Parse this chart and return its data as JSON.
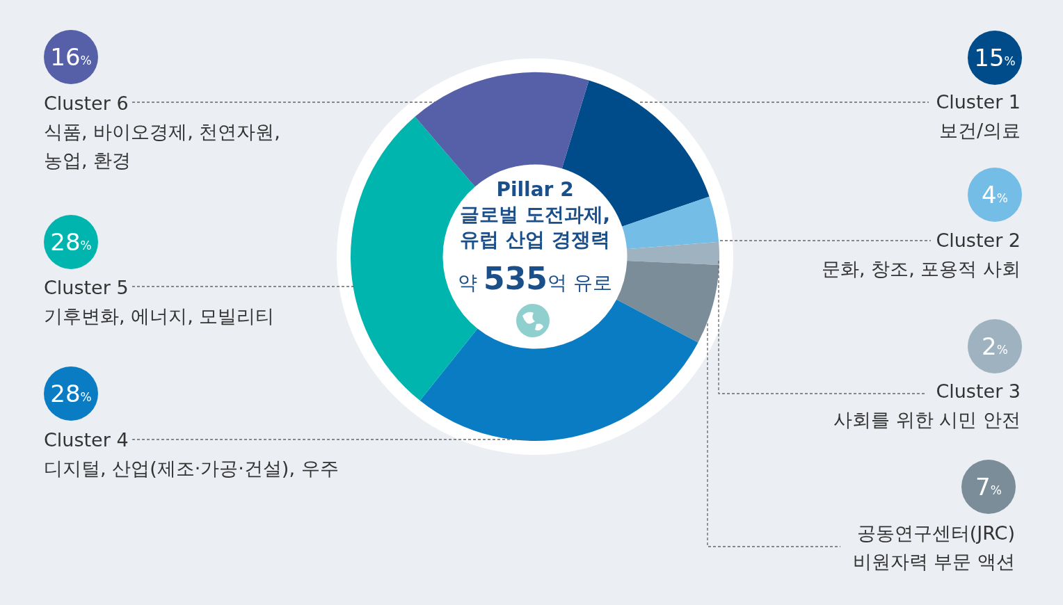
{
  "chart_data": {
    "type": "donut",
    "title": "Pillar 2\n글로벌 도전과제,\n유럽 산업 경쟁력",
    "subtitle": "약 535억 유로",
    "categories": [
      "Cluster 1\n보건/의료",
      "Cluster 2\n문화, 창조, 포용적 사회",
      "Cluster 3\n사회를 위한 시민 안전",
      "공동연구센터(JRC)\n비원자력 부문 액션",
      "Cluster 4\n디지털, 산업(제조·가공·건설), 우주",
      "Cluster 5\n기후변화, 에너지, 모빌리티",
      "Cluster 6\n식품, 바이오경제, 천연자원,\n농업, 환경"
    ],
    "values": [
      15,
      4,
      2,
      7,
      28,
      28,
      16
    ],
    "value_labels": [
      "15%",
      "4%",
      "2%",
      "7%",
      "28%",
      "28%",
      "16%"
    ],
    "colors": [
      "#004c8a",
      "#74bde6",
      "#9eb2c0",
      "#7a8d99",
      "#0a7cc4",
      "#00b5ad",
      "#5560a8"
    ]
  }
}
